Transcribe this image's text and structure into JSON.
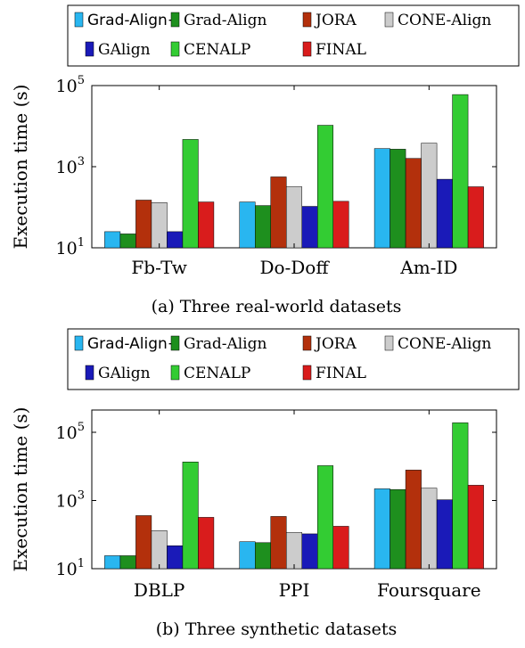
{
  "chart_data": [
    {
      "type": "bar",
      "caption": "(a) Three real-world datasets",
      "ylabel": "Execution time (s)",
      "yscale": "log",
      "ylim": [
        10,
        100000
      ],
      "yticks": [
        {
          "base": "10",
          "exp": "1"
        },
        {
          "base": "10",
          "exp": "3"
        },
        {
          "base": "10",
          "exp": "5"
        }
      ],
      "categories": [
        "Fb-Tw",
        "Do-Doff",
        "Am-ID"
      ],
      "legend_position": "top",
      "series": [
        {
          "name": "Grad-Align+",
          "color": "#29b6f0",
          "values": [
            25,
            135,
            2800
          ]
        },
        {
          "name": "Grad-Align",
          "color": "#1e8f1e",
          "values": [
            22,
            110,
            2700
          ]
        },
        {
          "name": "JORA",
          "color": "#b3300c",
          "values": [
            150,
            560,
            1600
          ]
        },
        {
          "name": "CONE-Align",
          "color": "#cccccc",
          "values": [
            130,
            320,
            3800
          ]
        },
        {
          "name": "GAlign",
          "color": "#1a1ab8",
          "values": [
            25,
            105,
            490
          ]
        },
        {
          "name": "CENALP",
          "color": "#33cc33",
          "values": [
            4700,
            10500,
            60000
          ]
        },
        {
          "name": "FINAL",
          "color": "#d91c1c",
          "values": [
            135,
            140,
            320
          ]
        }
      ]
    },
    {
      "type": "bar",
      "caption": "(b) Three synthetic datasets",
      "ylabel": "Execution time (s)",
      "yscale": "log",
      "ylim": [
        10,
        450000
      ],
      "yticks": [
        {
          "base": "10",
          "exp": "1"
        },
        {
          "base": "10",
          "exp": "3"
        },
        {
          "base": "10",
          "exp": "5"
        }
      ],
      "categories": [
        "DBLP",
        "PPI",
        "Foursquare"
      ],
      "legend_position": "top",
      "series": [
        {
          "name": "Grad-Align+",
          "color": "#29b6f0",
          "values": [
            24,
            62,
            2200
          ]
        },
        {
          "name": "Grad-Align",
          "color": "#1e8f1e",
          "values": [
            24,
            58,
            2100
          ]
        },
        {
          "name": "JORA",
          "color": "#b3300c",
          "values": [
            360,
            340,
            7800
          ]
        },
        {
          "name": "CONE-Align",
          "color": "#cccccc",
          "values": [
            130,
            115,
            2300
          ]
        },
        {
          "name": "GAlign",
          "color": "#1a1ab8",
          "values": [
            47,
            105,
            1050
          ]
        },
        {
          "name": "CENALP",
          "color": "#33cc33",
          "values": [
            13500,
            10500,
            190000
          ]
        },
        {
          "name": "FINAL",
          "color": "#d91c1c",
          "values": [
            320,
            175,
            2800
          ]
        }
      ]
    }
  ]
}
